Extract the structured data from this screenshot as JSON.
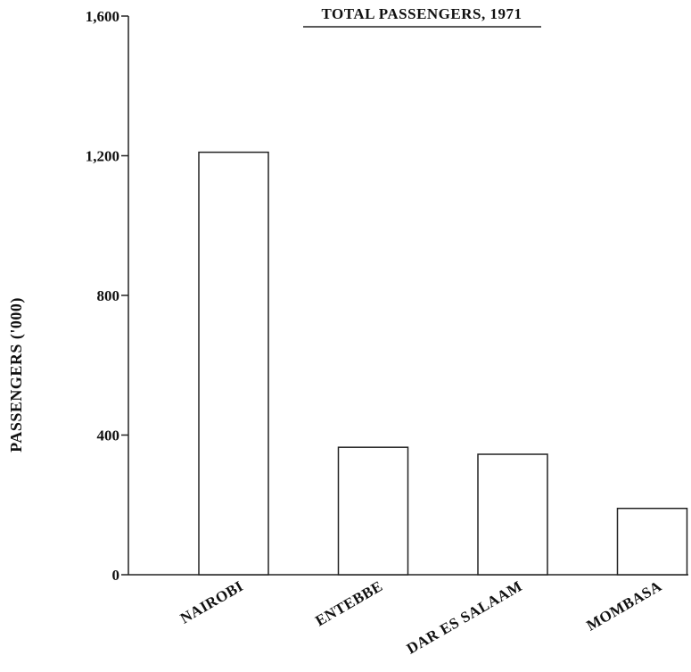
{
  "chart_data": {
    "type": "bar",
    "title": "TOTAL PASSENGERS, 1971",
    "xlabel": "",
    "ylabel": "PASSENGERS ('000)",
    "categories": [
      "NAIROBI",
      "ENTEBBE",
      "DAR ES SALAAM",
      "MOMBASA"
    ],
    "values": [
      1210,
      365,
      345,
      190
    ],
    "ylim": [
      0,
      1600
    ],
    "yticks": [
      0,
      400,
      800,
      1200,
      1600
    ],
    "ytick_labels": [
      "0",
      "400",
      "800",
      "1,200",
      "1,600"
    ],
    "grid": false,
    "legend": "none"
  }
}
